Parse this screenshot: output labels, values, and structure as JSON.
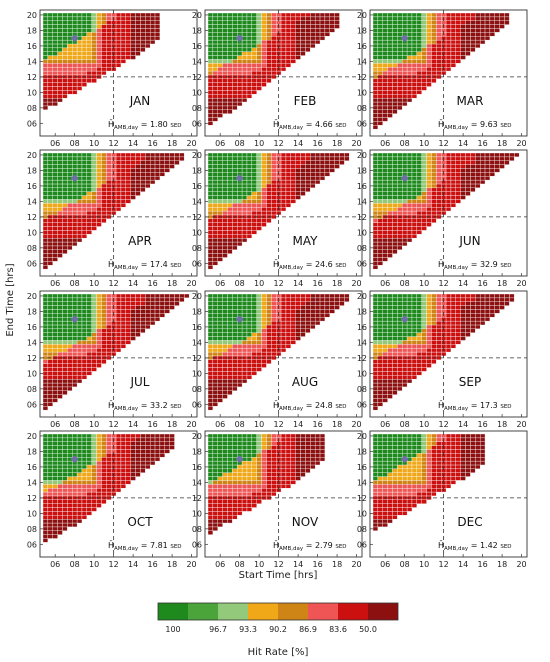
{
  "chart_data": {
    "type": "heatmap",
    "xlabel": "Start Time [hrs]",
    "ylabel": "End Time [hrs]",
    "x_ticks": [
      "06",
      "08",
      "10",
      "12",
      "14",
      "16",
      "18",
      "20"
    ],
    "y_ticks": [
      "06",
      "08",
      "10",
      "12",
      "14",
      "16",
      "18",
      "20"
    ],
    "xlim": [
      4.75,
      20.25
    ],
    "ylim": [
      4.75,
      20.25
    ],
    "reference_lines": {
      "start_time": 12,
      "end_time": 12
    },
    "marker": {
      "start_time": 8,
      "end_time": 17,
      "color": "#6f6fa8"
    },
    "annotation_symbol": "H̄",
    "annotation_subscript": "AMB,day",
    "annotation_unit": "SED",
    "colorbar": {
      "label": "Hit Rate [%]",
      "tick_labels": [
        "100",
        "96.7",
        "93.3",
        "90.2",
        "86.9",
        "83.6",
        "50.0"
      ],
      "colors": [
        "#1e8a1e",
        "#4aa43a",
        "#93c97a",
        "#f0a818",
        "#cf8416",
        "#ef5555",
        "#cc1010",
        "#8c1010"
      ]
    },
    "panels": [
      {
        "month": "JAN",
        "h_amb_day": "1.80",
        "x_max": 16.5,
        "y_min": 7.75,
        "rise": 15
      },
      {
        "month": "FEB",
        "h_amb_day": "4.66",
        "x_max": 18.25,
        "y_min": 6.0,
        "rise": 9
      },
      {
        "month": "MAR",
        "h_amb_day": "9.63",
        "x_max": 18.75,
        "y_min": 5.5,
        "rise": 7
      },
      {
        "month": "APR",
        "h_amb_day": "17.4",
        "x_max": 19.25,
        "y_min": 5.25,
        "rise": 6
      },
      {
        "month": "MAY",
        "h_amb_day": "24.6",
        "x_max": 19.25,
        "y_min": 5.25,
        "rise": 6
      },
      {
        "month": "JUN",
        "h_amb_day": "32.9",
        "x_max": 19.75,
        "y_min": 5.0,
        "rise": 5
      },
      {
        "month": "JUL",
        "h_amb_day": "33.2",
        "x_max": 19.75,
        "y_min": 5.0,
        "rise": 5
      },
      {
        "month": "AUG",
        "h_amb_day": "24.8",
        "x_max": 19.25,
        "y_min": 5.25,
        "rise": 6
      },
      {
        "month": "SEP",
        "h_amb_day": "17.3",
        "x_max": 19.0,
        "y_min": 5.5,
        "rise": 7
      },
      {
        "month": "OCT",
        "h_amb_day": "7.81",
        "x_max": 18.25,
        "y_min": 6.25,
        "rise": 9
      },
      {
        "month": "NOV",
        "h_amb_day": "2.79",
        "x_max": 16.5,
        "y_min": 7.5,
        "rise": 13
      },
      {
        "month": "DEC",
        "h_amb_day": "1.42",
        "x_max": 16.25,
        "y_min": 7.75,
        "rise": 15
      }
    ]
  }
}
